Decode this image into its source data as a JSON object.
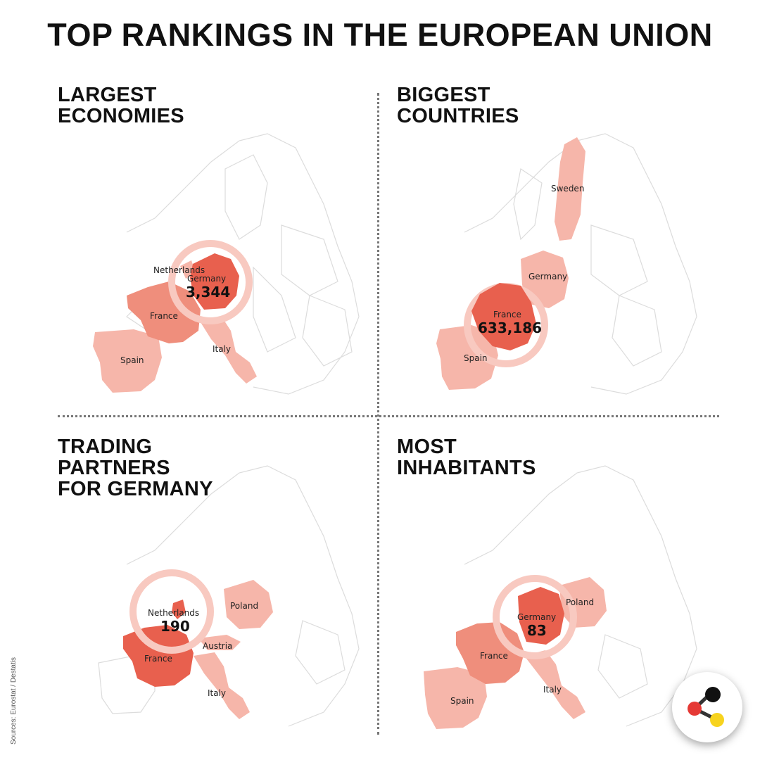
{
  "title": "TOP RANKINGS IN THE EUROPEAN UNION",
  "source": "Sources: Eurostat / Destatis",
  "colors": {
    "dark": "#e8604e",
    "mid": "#ef8e7c",
    "light": "#f6b6aa",
    "ring": "#f8c9c0",
    "outline": "#dcdcdc"
  },
  "panels": {
    "economies": {
      "title_lines": [
        "LARGEST",
        "ECONOMIES"
      ],
      "highlight": {
        "name": "Germany",
        "value": "3,344"
      },
      "labels": {
        "netherlands": "Netherlands",
        "france": "France",
        "spain": "Spain",
        "italy": "Italy"
      }
    },
    "countries": {
      "title_lines": [
        "BIGGEST",
        "COUNTRIES"
      ],
      "highlight": {
        "name": "France",
        "value": "633,186"
      },
      "labels": {
        "sweden": "Sweden",
        "germany": "Germany",
        "spain": "Spain"
      }
    },
    "trading": {
      "title_lines": [
        "TRADING",
        "PARTNERS",
        "FOR GERMANY"
      ],
      "highlight": {
        "name": "Netherlands",
        "value": "190"
      },
      "labels": {
        "poland": "Poland",
        "austria": "Austria",
        "france": "France",
        "italy": "Italy"
      }
    },
    "inhabitants": {
      "title_lines": [
        "MOST",
        "INHABITANTS"
      ],
      "highlight": {
        "name": "Germany",
        "value": "83"
      },
      "labels": {
        "poland": "Poland",
        "france": "France",
        "spain": "Spain",
        "italy": "Italy"
      }
    }
  }
}
